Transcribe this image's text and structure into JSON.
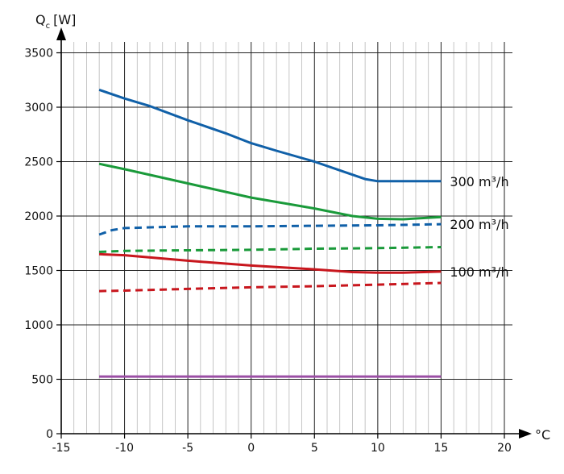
{
  "chart_data": {
    "type": "line",
    "ylabel": "Q",
    "ylabel_sub": "c",
    "ylabel_unit": "[W]",
    "xlabel": "°C",
    "xlim": [
      -15,
      20
    ],
    "ylim": [
      0,
      3600
    ],
    "x_ticks": [
      -15,
      -10,
      -5,
      0,
      5,
      10,
      15,
      20
    ],
    "y_ticks": [
      0,
      500,
      1000,
      1500,
      2000,
      2500,
      3000,
      3500
    ],
    "grid": true,
    "series": [
      {
        "name": "",
        "color": "#1060a8",
        "dash": false,
        "points": [
          [
            -12,
            3160
          ],
          [
            -10,
            3080
          ],
          [
            -8,
            3010
          ],
          [
            -5,
            2880
          ],
          [
            -2,
            2760
          ],
          [
            0,
            2670
          ],
          [
            2,
            2600
          ],
          [
            5,
            2500
          ],
          [
            7,
            2420
          ],
          [
            9,
            2340
          ],
          [
            10,
            2320
          ],
          [
            12,
            2320
          ],
          [
            15,
            2320
          ]
        ]
      },
      {
        "name": "",
        "color": "#1a9a3a",
        "dash": false,
        "points": [
          [
            -12,
            2480
          ],
          [
            -10,
            2430
          ],
          [
            -5,
            2300
          ],
          [
            0,
            2170
          ],
          [
            5,
            2070
          ],
          [
            8,
            2000
          ],
          [
            10,
            1975
          ],
          [
            12,
            1970
          ],
          [
            15,
            1990
          ]
        ]
      },
      {
        "name": "",
        "color": "#1060a8",
        "dash": true,
        "points": [
          [
            -12,
            1830
          ],
          [
            -11,
            1870
          ],
          [
            -10,
            1890
          ],
          [
            -5,
            1905
          ],
          [
            0,
            1905
          ],
          [
            5,
            1910
          ],
          [
            10,
            1915
          ],
          [
            15,
            1925
          ]
        ]
      },
      {
        "name": "",
        "color": "#1a9a3a",
        "dash": true,
        "points": [
          [
            -12,
            1670
          ],
          [
            -10,
            1680
          ],
          [
            -5,
            1685
          ],
          [
            0,
            1690
          ],
          [
            5,
            1700
          ],
          [
            10,
            1705
          ],
          [
            15,
            1715
          ]
        ]
      },
      {
        "name": "",
        "color": "#c8161d",
        "dash": false,
        "points": [
          [
            -12,
            1650
          ],
          [
            -10,
            1640
          ],
          [
            -5,
            1590
          ],
          [
            0,
            1545
          ],
          [
            5,
            1510
          ],
          [
            8,
            1485
          ],
          [
            10,
            1480
          ],
          [
            12,
            1480
          ],
          [
            15,
            1490
          ]
        ]
      },
      {
        "name": "",
        "color": "#c8161d",
        "dash": true,
        "points": [
          [
            -12,
            1310
          ],
          [
            -10,
            1315
          ],
          [
            -5,
            1330
          ],
          [
            0,
            1345
          ],
          [
            5,
            1355
          ],
          [
            10,
            1370
          ],
          [
            15,
            1385
          ]
        ]
      },
      {
        "name": "",
        "color": "#9b4fa5",
        "dash": false,
        "points": [
          [
            -12,
            525
          ],
          [
            15,
            525
          ]
        ]
      }
    ],
    "annotations": [
      {
        "text": "300 m³/h",
        "x": 15.7,
        "y": 2320
      },
      {
        "text": "200 m³/h",
        "x": 15.7,
        "y": 1925
      },
      {
        "text": "100 m³/h",
        "x": 15.7,
        "y": 1490
      }
    ]
  }
}
